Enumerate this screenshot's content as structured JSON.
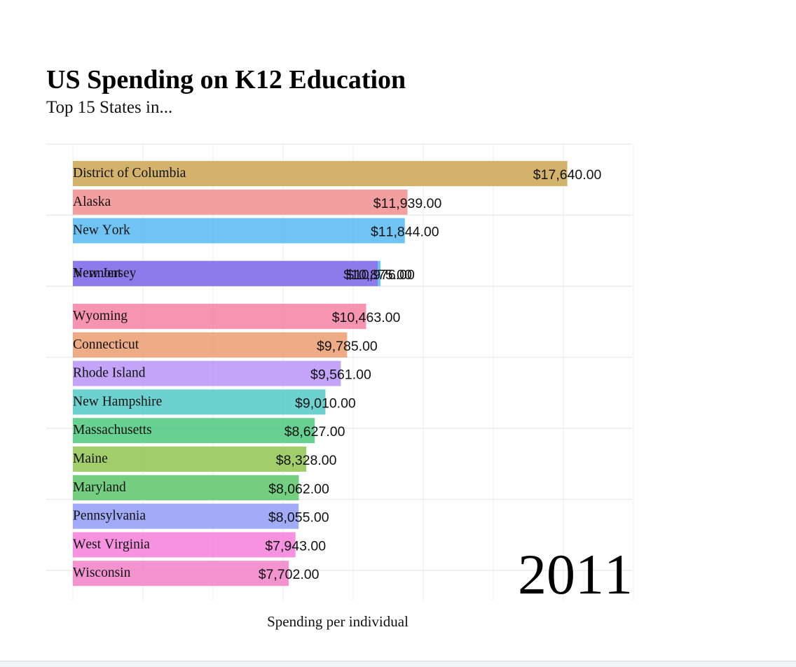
{
  "chart_data": {
    "type": "bar",
    "orientation": "horizontal",
    "title": "US Spending on K12 Education",
    "subtitle": "Top 15 States in...",
    "xlabel": "Spending per individual",
    "year_label": "2011",
    "xlim": [
      0,
      20000
    ],
    "grid": true,
    "legend": "none",
    "categories": [
      "District of Columbia",
      "Alaska",
      "New York",
      "New Jersey",
      "Vermont",
      "Wyoming",
      "Connecticut",
      "Rhode Island",
      "New Hampshire",
      "Massachusetts",
      "Maine",
      "Maryland",
      "Pennsylvania",
      "West Virginia",
      "Wisconsin"
    ],
    "values": [
      17640,
      11939,
      11844,
      10976,
      10875,
      10463,
      9785,
      9561,
      9010,
      8627,
      8328,
      8062,
      8055,
      7943,
      7702
    ],
    "value_labels": [
      "$17,640.00",
      "$11,939.00",
      "$11,844.00",
      "$10,976.00",
      "$10,875.00",
      "$10,463.00",
      "$9,785.00",
      "$9,561.00",
      "$9,010.00",
      "$8,627.00",
      "$8,328.00",
      "$8,062.00",
      "$8,055.00",
      "$7,943.00",
      "$7,702.00"
    ],
    "ranks": [
      1,
      2,
      3,
      4.5,
      4.5,
      6,
      7,
      8,
      9,
      10,
      11,
      12,
      13,
      14,
      15
    ],
    "colors": [
      "#c9a24a",
      "#f08a8a",
      "#4fb7f0",
      "#45b8f5",
      "#9669e8",
      "#f47ca0",
      "#e99a6b",
      "#b690f7",
      "#4dc7c6",
      "#45c77a",
      "#8cc34a",
      "#57c465",
      "#8e98f7",
      "#f47ad8",
      "#f07cc6"
    ]
  }
}
